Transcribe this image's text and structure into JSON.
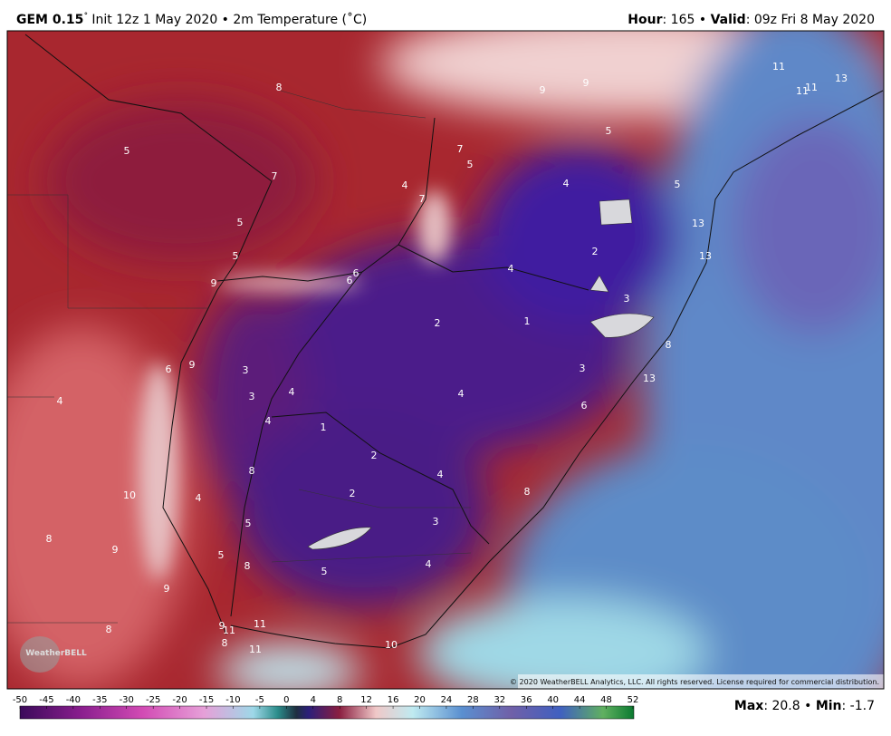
{
  "header": {
    "model": "GEM 0.15",
    "degree": "˚",
    "description": "Init 12z 1 May 2020 • 2m Temperature (˚C)",
    "hour_label": "Hour",
    "hour_text": ": 165 • ",
    "valid_label": "Valid",
    "valid_text": ": 09z Fri 8 May 2020"
  },
  "map": {
    "labels": [
      8,
      9,
      9,
      11,
      11,
      11,
      13,
      5,
      7,
      7,
      5,
      5,
      4,
      4,
      5,
      5,
      7,
      5,
      6,
      6,
      9,
      4,
      2,
      13,
      13,
      3,
      2,
      1,
      8,
      6,
      9,
      3,
      3,
      4,
      4,
      3,
      13,
      4,
      6,
      4,
      1,
      2,
      4,
      8,
      10,
      4,
      2,
      8,
      3,
      5,
      8,
      9,
      5,
      8,
      5,
      4,
      9,
      11,
      9,
      11,
      8,
      8,
      11,
      10
    ],
    "logo": "WeatherBELL",
    "copyright": "© 2020 WeatherBELL Analytics, LLC. All rights reserved. License required for commercial distribution."
  },
  "colorbar": {
    "ticks": [
      -50,
      -45,
      -40,
      -35,
      -30,
      -25,
      -20,
      -15,
      -10,
      -5,
      0,
      4,
      8,
      12,
      16,
      20,
      24,
      28,
      32,
      36,
      40,
      44,
      48,
      52
    ]
  },
  "footer": {
    "max_label": "Max",
    "max_text": ": 20.8 • ",
    "min_label": "Min",
    "min_text": ": -1.7"
  }
}
